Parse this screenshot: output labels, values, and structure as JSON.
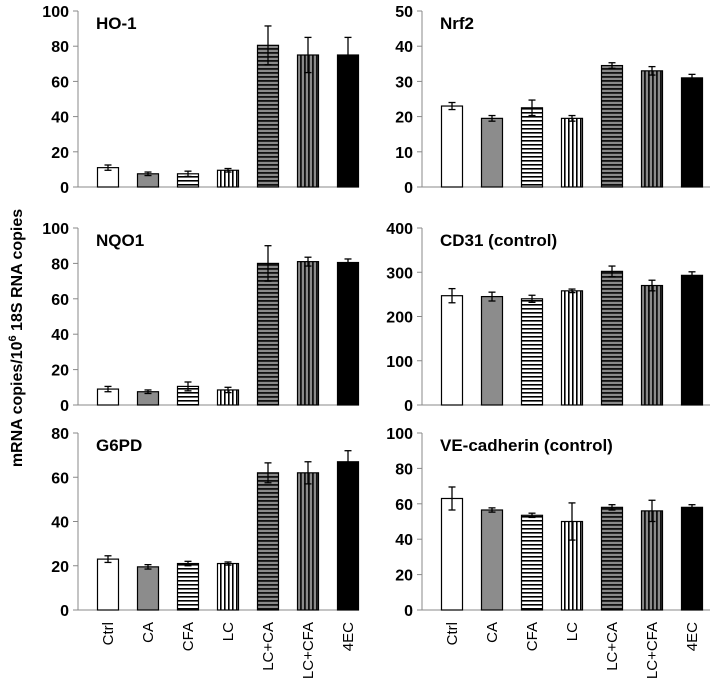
{
  "chart_data": {
    "type": "bar",
    "ylabel_parts": [
      "mRNA copies/10",
      "6",
      " 18S RNA copies"
    ],
    "categories": [
      "Ctrl",
      "CA",
      "CFA",
      "LC",
      "LC+CA",
      "LC+CFA",
      "4EC"
    ],
    "bar_styles": [
      "white",
      "gray",
      "hstripe",
      "vstripe",
      "hstripe-dark",
      "vstripe-dark",
      "black"
    ],
    "colors": {
      "gray": "#8c8c8c",
      "black": "#000000",
      "dark": "#555555",
      "white": "#ffffff"
    },
    "panels": [
      {
        "title": "HO-1",
        "ylim": [
          0,
          100
        ],
        "yticks": [
          0,
          20,
          40,
          60,
          80,
          100
        ],
        "values": [
          11,
          7.5,
          7.5,
          9.5,
          80.5,
          75,
          75
        ],
        "errors": [
          1.5,
          1,
          1.5,
          1,
          11,
          10,
          10
        ]
      },
      {
        "title": "Nrf2",
        "ylim": [
          0,
          50
        ],
        "yticks": [
          0,
          10,
          20,
          30,
          40,
          50
        ],
        "values": [
          23,
          19.5,
          22.5,
          19.5,
          34.5,
          33,
          31
        ],
        "errors": [
          1,
          0.8,
          2.2,
          0.8,
          0.8,
          1.2,
          1
        ]
      },
      {
        "title": "NQO1",
        "ylim": [
          0,
          100
        ],
        "yticks": [
          0,
          20,
          40,
          60,
          80,
          100
        ],
        "values": [
          9,
          7.5,
          10.5,
          8.5,
          80,
          81,
          80.5
        ],
        "errors": [
          1.5,
          1,
          2.5,
          1.5,
          10,
          2.5,
          2
        ]
      },
      {
        "title": "CD31 (control)",
        "ylim": [
          0,
          400
        ],
        "yticks": [
          0,
          100,
          200,
          300,
          400
        ],
        "values": [
          247,
          245,
          240,
          258,
          302,
          270,
          293
        ],
        "errors": [
          16,
          10,
          8,
          4,
          12,
          12,
          8
        ]
      },
      {
        "title": "G6PD",
        "ylim": [
          0,
          80
        ],
        "yticks": [
          0,
          20,
          40,
          60,
          80
        ],
        "values": [
          23,
          19.5,
          21,
          21,
          62,
          62,
          67
        ],
        "errors": [
          1.5,
          1,
          1,
          0.7,
          4.5,
          5,
          5
        ]
      },
      {
        "title": "VE-cadherin (control)",
        "ylim": [
          0,
          100
        ],
        "yticks": [
          0,
          20,
          40,
          60,
          80,
          100
        ],
        "values": [
          63,
          56.5,
          53.5,
          50,
          58,
          56,
          58
        ],
        "errors": [
          6.5,
          1.2,
          1.2,
          10.5,
          1.5,
          6,
          1.5
        ]
      }
    ]
  }
}
